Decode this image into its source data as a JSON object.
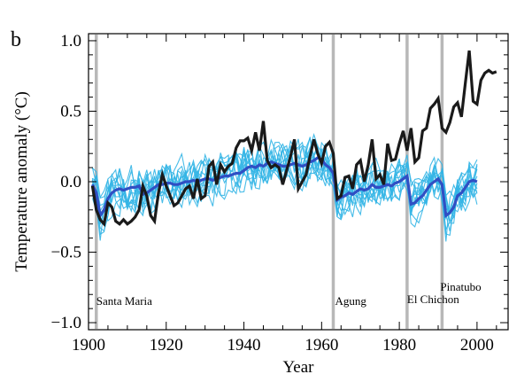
{
  "panel_label": "b",
  "chart_data": {
    "type": "line",
    "xlabel": "Year",
    "ylabel": "Temperature anomaly (°C)",
    "xlim": [
      1900,
      2008
    ],
    "ylim": [
      -1.05,
      1.05
    ],
    "x_ticks": [
      1900,
      1920,
      1940,
      1960,
      1980,
      2000
    ],
    "x_tick_labels": [
      "1900",
      "1920",
      "1940",
      "1960",
      "1980",
      "2000"
    ],
    "y_ticks": [
      -1.0,
      -0.5,
      0.0,
      0.5,
      1.0
    ],
    "y_tick_labels": [
      "−1.0",
      "−0.5",
      "0.0",
      "0.5",
      "1.0"
    ],
    "grid": false,
    "legend": "none",
    "eruptions": [
      {
        "name": "Santa Maria",
        "year": 1902
      },
      {
        "name": "Agung",
        "year": 1963
      },
      {
        "name": "El Chichon",
        "year": 1982
      },
      {
        "name": "Pinatubo",
        "year": 1991
      }
    ],
    "series": [
      {
        "role": "observed",
        "color": "#1a1a1a",
        "x": [
          1901,
          1902,
          1903,
          1904,
          1905,
          1906,
          1907,
          1908,
          1909,
          1910,
          1911,
          1912,
          1913,
          1914,
          1915,
          1916,
          1917,
          1918,
          1919,
          1920,
          1921,
          1922,
          1923,
          1924,
          1925,
          1926,
          1927,
          1928,
          1929,
          1930,
          1931,
          1932,
          1933,
          1934,
          1935,
          1936,
          1937,
          1938,
          1939,
          1940,
          1941,
          1942,
          1943,
          1944,
          1945,
          1946,
          1947,
          1948,
          1949,
          1950,
          1951,
          1952,
          1953,
          1954,
          1955,
          1956,
          1957,
          1958,
          1959,
          1960,
          1961,
          1962,
          1963,
          1964,
          1965,
          1966,
          1967,
          1968,
          1969,
          1970,
          1971,
          1972,
          1973,
          1974,
          1975,
          1976,
          1977,
          1978,
          1979,
          1980,
          1981,
          1982,
          1983,
          1984,
          1985,
          1986,
          1987,
          1988,
          1989,
          1990,
          1991,
          1992,
          1993,
          1994,
          1995,
          1996,
          1997,
          1998,
          1999,
          2000,
          2001,
          2002,
          2003,
          2004,
          2005
        ],
        "y": [
          -0.03,
          -0.2,
          -0.27,
          -0.3,
          -0.15,
          -0.18,
          -0.28,
          -0.3,
          -0.27,
          -0.3,
          -0.28,
          -0.25,
          -0.2,
          -0.03,
          -0.1,
          -0.24,
          -0.28,
          -0.08,
          0.05,
          -0.03,
          -0.1,
          -0.17,
          -0.15,
          -0.1,
          -0.05,
          -0.03,
          -0.12,
          0.02,
          -0.12,
          -0.1,
          0.11,
          0.14,
          -0.02,
          0.12,
          0.07,
          0.11,
          0.13,
          0.24,
          0.29,
          0.29,
          0.31,
          0.22,
          0.35,
          0.22,
          0.43,
          0.15,
          0.1,
          0.12,
          0.1,
          -0.02,
          0.08,
          0.18,
          0.3,
          -0.05,
          0.0,
          0.05,
          0.18,
          0.3,
          0.2,
          0.13,
          0.25,
          0.28,
          0.2,
          -0.12,
          -0.1,
          0.03,
          0.04,
          -0.05,
          0.12,
          0.15,
          0.0,
          0.12,
          0.3,
          0.02,
          0.05,
          -0.02,
          0.27,
          0.15,
          0.16,
          0.27,
          0.36,
          0.22,
          0.38,
          0.14,
          0.17,
          0.36,
          0.38,
          0.52,
          0.55,
          0.59,
          0.38,
          0.35,
          0.42,
          0.53,
          0.56,
          0.46,
          0.7,
          0.93,
          0.57,
          0.55,
          0.72,
          0.77,
          0.79,
          0.77,
          0.78
        ]
      },
      {
        "role": "ensemble-mean",
        "color": "#2f4fc4",
        "x": [
          1901,
          1902,
          1903,
          1904,
          1905,
          1906,
          1907,
          1908,
          1909,
          1910,
          1911,
          1912,
          1913,
          1914,
          1915,
          1916,
          1917,
          1918,
          1919,
          1920,
          1921,
          1922,
          1923,
          1924,
          1925,
          1926,
          1927,
          1928,
          1929,
          1930,
          1931,
          1932,
          1933,
          1934,
          1935,
          1936,
          1937,
          1938,
          1939,
          1940,
          1941,
          1942,
          1943,
          1944,
          1945,
          1946,
          1947,
          1948,
          1949,
          1950,
          1951,
          1952,
          1953,
          1954,
          1955,
          1956,
          1957,
          1958,
          1959,
          1960,
          1961,
          1962,
          1963,
          1964,
          1965,
          1966,
          1967,
          1968,
          1969,
          1970,
          1971,
          1972,
          1973,
          1974,
          1975,
          1976,
          1977,
          1978,
          1979,
          1980,
          1981,
          1982,
          1983,
          1984,
          1985,
          1986,
          1987,
          1988,
          1989,
          1990,
          1991,
          1992,
          1993,
          1994,
          1995,
          1996,
          1997,
          1998,
          1999,
          2000
        ],
        "y": [
          -0.02,
          -0.08,
          -0.24,
          -0.2,
          -0.12,
          -0.08,
          -0.06,
          -0.05,
          -0.06,
          -0.05,
          -0.04,
          -0.04,
          -0.03,
          -0.09,
          -0.08,
          -0.06,
          -0.04,
          -0.02,
          -0.02,
          -0.01,
          -0.01,
          -0.02,
          -0.02,
          -0.01,
          0.0,
          0.0,
          0.01,
          0.0,
          0.01,
          0.02,
          0.02,
          0.01,
          0.02,
          0.03,
          0.04,
          0.04,
          0.05,
          0.06,
          0.06,
          0.08,
          0.1,
          0.11,
          0.1,
          0.12,
          0.11,
          0.13,
          0.14,
          0.13,
          0.12,
          0.11,
          0.11,
          0.12,
          0.13,
          0.12,
          0.11,
          0.12,
          0.14,
          0.15,
          0.17,
          0.16,
          0.12,
          0.1,
          0.06,
          -0.13,
          -0.11,
          -0.1,
          -0.08,
          -0.09,
          -0.07,
          -0.05,
          -0.06,
          -0.05,
          -0.02,
          -0.04,
          -0.04,
          -0.03,
          -0.02,
          -0.03,
          -0.01,
          0.0,
          0.02,
          0.04,
          -0.16,
          -0.15,
          -0.12,
          -0.1,
          -0.06,
          -0.02,
          0.0,
          0.02,
          -0.02,
          -0.24,
          -0.22,
          -0.18,
          -0.1,
          -0.08,
          -0.04,
          0.0,
          0.01,
          0.0
        ]
      }
    ]
  },
  "ensemble_members": {
    "color": "#33b5e5",
    "count": 12,
    "start_year": 1900,
    "end_year": 2000
  }
}
